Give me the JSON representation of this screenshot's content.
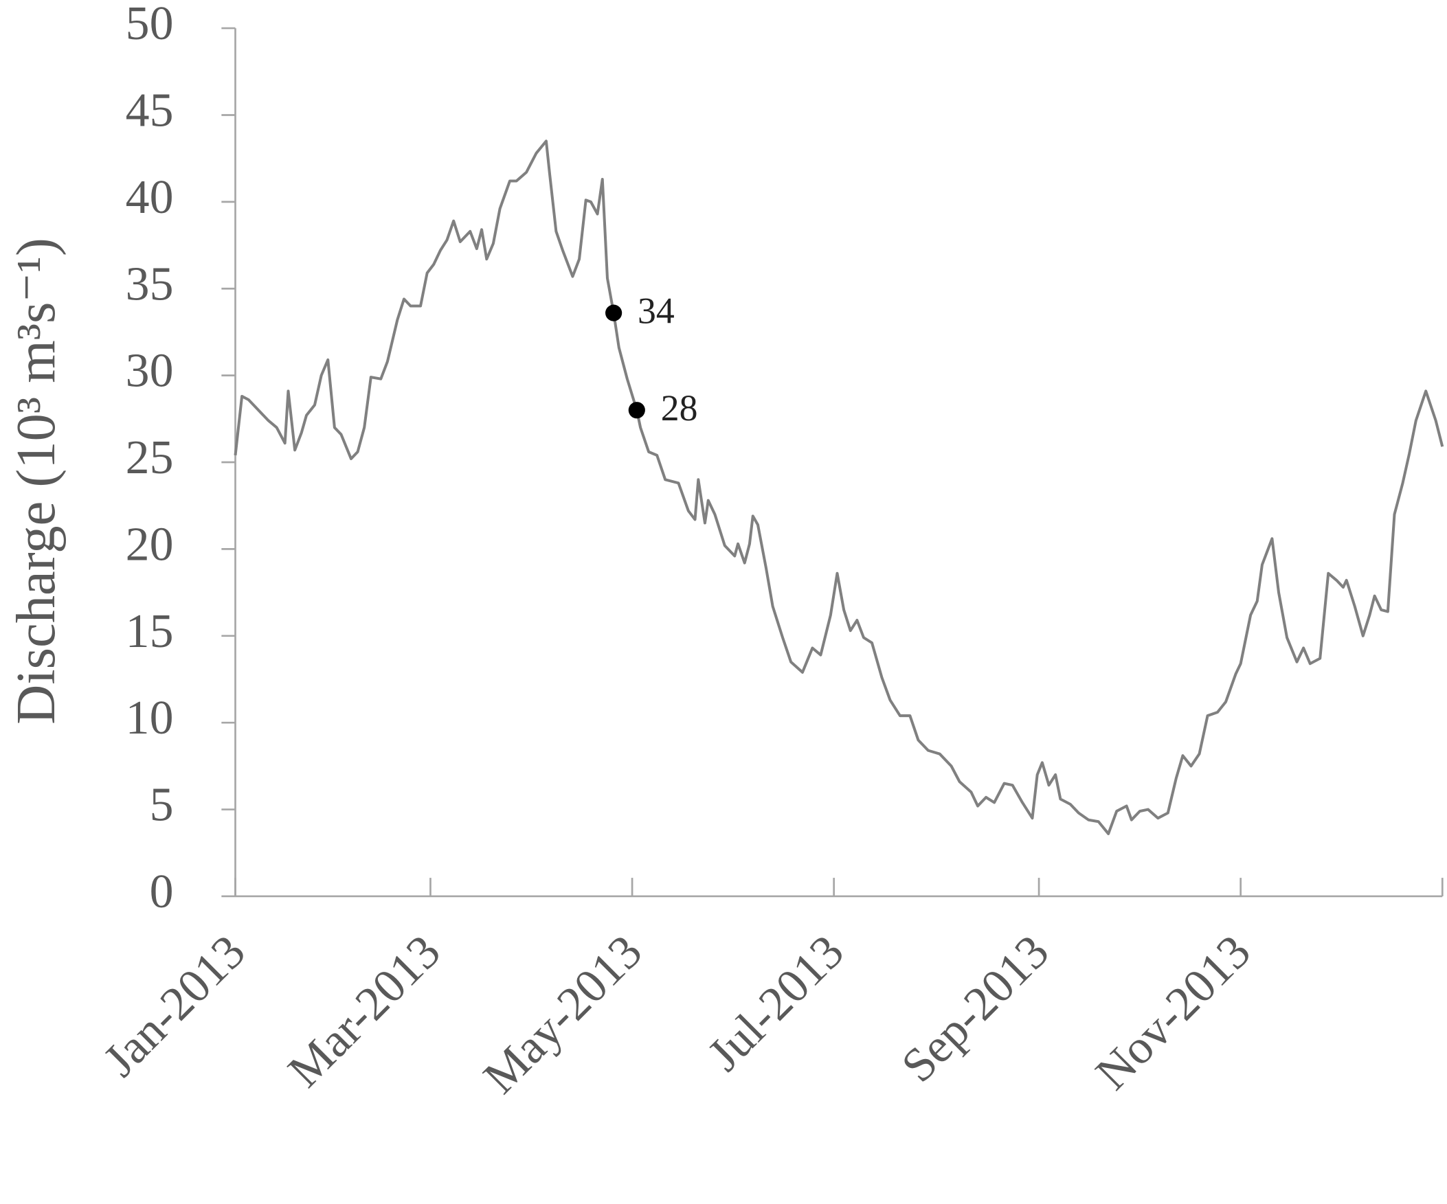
{
  "chart_data": {
    "type": "line",
    "y_label": "Discharge (10³ m³s⁻¹)",
    "xlim": [
      0,
      365
    ],
    "xticks": [
      {
        "value": 0,
        "label": "Jan-2013"
      },
      {
        "value": 59,
        "label": "Mar-2013"
      },
      {
        "value": 120,
        "label": "May-2013"
      },
      {
        "value": 181,
        "label": "Jul-2013"
      },
      {
        "value": 243,
        "label": "Sep-2013"
      },
      {
        "value": 304,
        "label": "Nov-2013"
      }
    ],
    "ylim": [
      0,
      50
    ],
    "yticks": [
      0,
      5,
      10,
      15,
      20,
      25,
      30,
      35,
      40,
      45,
      50
    ],
    "series": [
      {
        "color": "#808080",
        "x": [
          0,
          2,
          4,
          6,
          10,
          12.5,
          15,
          16,
          18,
          20,
          21.5,
          24,
          26,
          28,
          30,
          32,
          35,
          37,
          39,
          41,
          44,
          46,
          49,
          51,
          53,
          56,
          58,
          60,
          62,
          64,
          66,
          68,
          71,
          73,
          74.5,
          76,
          78,
          80,
          83,
          85,
          88,
          91,
          94,
          95,
          97,
          99,
          102,
          104,
          106,
          107.5,
          109.5,
          111,
          112.5,
          114.4,
          116,
          118.5,
          121.4,
          122.5,
          125,
          127.5,
          130,
          134,
          137,
          139,
          140,
          142,
          143,
          145,
          148,
          151,
          152,
          154,
          155.5,
          156.5,
          158,
          160.5,
          162.5,
          165.5,
          168,
          171.5,
          174.5,
          177,
          180,
          182,
          184,
          186,
          188,
          190,
          192.5,
          195.5,
          198,
          201,
          204,
          206.5,
          209.5,
          213,
          216.5,
          219,
          222.5,
          224.5,
          227,
          229.5,
          232.5,
          235,
          238,
          241,
          242.5,
          244,
          246,
          248,
          249.5,
          252.5,
          255,
          258,
          261,
          264,
          266.5,
          269.5,
          271,
          273.5,
          276,
          279,
          282,
          284.5,
          286.5,
          289,
          291.5,
          294,
          297,
          299.5,
          302.5,
          304,
          307,
          309,
          310.5,
          313.5,
          315.5,
          318,
          321,
          323,
          325,
          328,
          330.5,
          333,
          335,
          336,
          338.5,
          341,
          343,
          344.5,
          346.5,
          348.5,
          350.5,
          353,
          355,
          357,
          360,
          363,
          365
        ],
        "values": [
          25.4,
          28.8,
          28.6,
          28.2,
          27.4,
          27.0,
          26.1,
          29.1,
          25.7,
          26.7,
          27.7,
          28.3,
          30.0,
          30.9,
          27.0,
          26.6,
          25.2,
          25.6,
          27.0,
          29.9,
          29.8,
          30.8,
          33.2,
          34.4,
          34.0,
          34.0,
          35.9,
          36.4,
          37.2,
          37.8,
          38.9,
          37.7,
          38.3,
          37.3,
          38.4,
          36.7,
          37.6,
          39.6,
          41.2,
          41.2,
          41.7,
          42.8,
          43.5,
          41.7,
          38.3,
          37.2,
          35.7,
          36.7,
          40.1,
          40.0,
          39.3,
          41.3,
          35.6,
          33.6,
          31.6,
          29.8,
          28.0,
          27.0,
          25.6,
          25.4,
          24.0,
          23.8,
          22.2,
          21.7,
          24.0,
          21.5,
          22.8,
          22.0,
          20.2,
          19.6,
          20.3,
          19.2,
          20.3,
          21.9,
          21.4,
          18.9,
          16.7,
          14.9,
          13.5,
          12.9,
          14.3,
          13.9,
          16.2,
          18.6,
          16.5,
          15.3,
          15.9,
          14.9,
          14.6,
          12.6,
          11.3,
          10.4,
          10.4,
          9.0,
          8.4,
          8.2,
          7.5,
          6.6,
          6.0,
          5.2,
          5.7,
          5.4,
          6.5,
          6.4,
          5.4,
          4.5,
          7.0,
          7.7,
          6.4,
          7.0,
          5.6,
          5.3,
          4.8,
          4.4,
          4.3,
          3.6,
          4.9,
          5.2,
          4.4,
          4.9,
          5.0,
          4.5,
          4.8,
          6.8,
          8.1,
          7.5,
          8.2,
          10.4,
          10.6,
          11.2,
          12.8,
          13.4,
          16.2,
          17.0,
          19.1,
          20.6,
          17.5,
          14.9,
          13.5,
          14.3,
          13.4,
          13.7,
          18.6,
          18.2,
          17.8,
          18.2,
          16.7,
          15.0,
          16.2,
          17.3,
          16.5,
          16.4,
          22.0,
          23.8,
          25.5,
          27.4,
          29.1,
          27.4,
          25.9
        ]
      }
    ],
    "points": {
      "color": "#000000",
      "x": [
        114.4,
        121.4
      ],
      "values": [
        33.6,
        28.0
      ],
      "value_labels": [
        "34",
        "28"
      ]
    }
  }
}
